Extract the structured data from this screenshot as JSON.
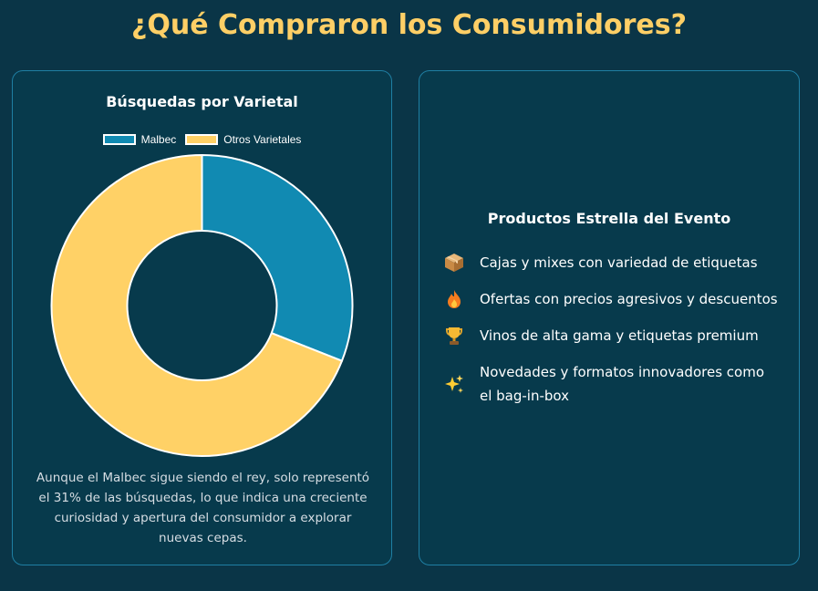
{
  "page": {
    "title": "¿Qué Compraron los Consumidores?"
  },
  "left_card": {
    "caption": "Aunque el Malbec sigue siendo el rey, solo representó el 31% de las búsquedas, lo que indica una creciente curiosidad y apertura del consumidor a explorar nuevas cepas."
  },
  "chart_data": {
    "type": "pie",
    "variant": "doughnut",
    "title": "Búsquedas por Varietal",
    "legend_position": "top",
    "slices": [
      {
        "label": "Malbec",
        "value": 31,
        "color": "#118ab2"
      },
      {
        "label": "Otros Varietales",
        "value": 69,
        "color": "#ffd166"
      }
    ]
  },
  "right_card": {
    "title": "Productos Estrella del Evento",
    "items": [
      {
        "icon": "package-icon",
        "text": "Cajas y mixes con variedad de etiquetas"
      },
      {
        "icon": "fire-icon",
        "text": "Ofertas con precios agresivos y descuentos"
      },
      {
        "icon": "trophy-icon",
        "text": "Vinos de alta gama y etiquetas premium"
      },
      {
        "icon": "sparkles-icon",
        "text": "Novedades y formatos innovadores como el bag-in-box"
      }
    ]
  },
  "colors": {
    "background": "#0a3547",
    "card_border": "#1f7fa3",
    "title_accent": "#fecf66"
  }
}
